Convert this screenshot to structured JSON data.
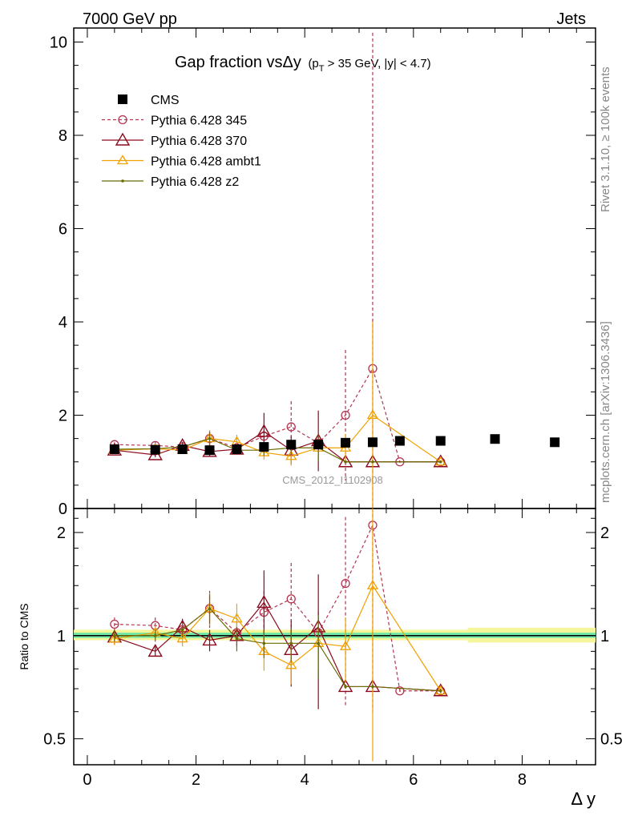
{
  "header": {
    "left": "7000 GeV pp",
    "right": "Jets"
  },
  "side": {
    "rivet": "Rivet 3.1.10, ≥ 100k events",
    "mcplots": "mcplots.cern.ch [arXiv:1306.3436]"
  },
  "chart_data": [
    {
      "type": "line",
      "panel": "main",
      "title": {
        "main": "Gap fraction vsΔy",
        "sub_open": "(p",
        "sub_T": "T",
        "sub_rest": " > 35 GeV, |y| < 4.7)"
      },
      "analysis_label": "CMS_2012_I1102908",
      "ylim": [
        0,
        10.3
      ],
      "yticks": [
        0,
        2,
        4,
        6,
        8,
        10
      ],
      "xlim": [
        -0.25,
        9.35
      ],
      "xticks": [
        0,
        2,
        4,
        6,
        8
      ],
      "legend_position": "top-left",
      "legend": [
        {
          "name": "CMS",
          "color": "#000000",
          "marker": "square",
          "dash": false
        },
        {
          "name": "Pythia 6.428 345",
          "color": "#b5344f",
          "marker": "circle",
          "dash": true
        },
        {
          "name": "Pythia 6.428 370",
          "color": "#8b0a1e",
          "marker": "triangle",
          "dash": false
        },
        {
          "name": "Pythia 6.428 ambt1",
          "color": "#f0a000",
          "marker": "triangle-small",
          "dash": false
        },
        {
          "name": "Pythia 6.428 z2",
          "color": "#6b6b00",
          "marker": "dot",
          "dash": false
        }
      ],
      "series": [
        {
          "name": "CMS",
          "x": [
            0.5,
            1.25,
            1.75,
            2.25,
            2.75,
            3.25,
            3.75,
            4.25,
            4.75,
            5.25,
            5.75,
            6.5,
            7.5,
            8.6
          ],
          "y": [
            1.27,
            1.26,
            1.27,
            1.25,
            1.27,
            1.32,
            1.37,
            1.37,
            1.41,
            1.42,
            1.45,
            1.45,
            1.49,
            1.42
          ]
        },
        {
          "name": "Pythia 6.428 345",
          "x": [
            0.5,
            1.25,
            1.75,
            2.25,
            2.75,
            3.25,
            3.75,
            4.25,
            4.75,
            5.25,
            5.75,
            6.5
          ],
          "y": [
            1.37,
            1.35,
            1.32,
            1.5,
            1.3,
            1.55,
            1.75,
            1.4,
            2.0,
            3.0,
            1.0,
            1.0
          ],
          "err": [
            0.05,
            0.08,
            0.07,
            0.15,
            0.12,
            0.25,
            0.55,
            0.2,
            1.4,
            7.2,
            0.02,
            0.02
          ]
        },
        {
          "name": "Pythia 6.428 370",
          "x": [
            0.5,
            1.25,
            1.75,
            2.25,
            2.75,
            3.25,
            3.75,
            4.25,
            4.75,
            5.25,
            6.5
          ],
          "y": [
            1.25,
            1.15,
            1.35,
            1.22,
            1.27,
            1.65,
            1.25,
            1.45,
            1.0,
            1.0,
            1.0
          ],
          "err": [
            0.06,
            0.05,
            0.08,
            0.1,
            0.1,
            0.4,
            0.3,
            0.65,
            0.02,
            0.02,
            0.02
          ]
        },
        {
          "name": "Pythia 6.428 ambt1",
          "x": [
            0.5,
            1.25,
            1.75,
            2.25,
            2.75,
            3.25,
            3.75,
            4.25,
            4.75,
            5.25,
            6.5
          ],
          "y": [
            1.25,
            1.28,
            1.25,
            1.5,
            1.43,
            1.2,
            1.12,
            1.3,
            1.3,
            2.0,
            1.0
          ],
          "err": [
            0.05,
            0.06,
            0.07,
            0.18,
            0.15,
            0.15,
            0.2,
            0.2,
            0.3,
            2.0,
            0.02
          ]
        },
        {
          "name": "Pythia 6.428 z2",
          "x": [
            0.5,
            1.25,
            1.75,
            2.25,
            2.75,
            3.25,
            3.75,
            4.25,
            4.75,
            5.25,
            6.5
          ],
          "y": [
            1.27,
            1.28,
            1.32,
            1.5,
            1.25,
            1.25,
            1.3,
            1.3,
            1.0,
            1.0,
            1.0
          ],
          "err": [
            0.05,
            0.05,
            0.06,
            0.15,
            0.1,
            0.12,
            0.15,
            0.3,
            0.02,
            0.02,
            0.02
          ]
        }
      ]
    },
    {
      "type": "line",
      "panel": "ratio",
      "ylabel": "Ratio to CMS",
      "xlabel": "Δ y",
      "ylim": [
        0.42,
        2.35
      ],
      "log": true,
      "yticks": [
        0.5,
        1,
        2
      ],
      "ytick_labels": [
        "0.5",
        "1",
        "2"
      ],
      "xlim": [
        -0.25,
        9.35
      ],
      "xticks": [
        0,
        2,
        4,
        6,
        8
      ],
      "xtick_labels": [
        "0",
        "2",
        "4",
        "6",
        "8"
      ],
      "band_color": "#f5f59a",
      "band_inner_color": "#6fe8a8",
      "series": [
        {
          "name": "Pythia 6.428 345",
          "x": [
            0.5,
            1.25,
            1.75,
            2.25,
            2.75,
            3.25,
            3.75,
            4.25,
            4.75,
            5.25,
            5.75,
            6.5
          ],
          "y": [
            1.08,
            1.07,
            1.04,
            1.2,
            1.02,
            1.17,
            1.28,
            1.02,
            1.42,
            2.1,
            0.69,
            0.69
          ],
          "err": [
            0.05,
            0.06,
            0.05,
            0.15,
            0.08,
            0.18,
            0.35,
            0.15,
            0.8,
            1.5,
            0.01,
            0.01
          ]
        },
        {
          "name": "Pythia 6.428 370",
          "x": [
            0.5,
            1.25,
            1.75,
            2.25,
            2.75,
            3.25,
            3.75,
            4.25,
            4.75,
            5.25,
            6.5
          ],
          "y": [
            0.99,
            0.9,
            1.06,
            0.97,
            1.0,
            1.25,
            0.91,
            1.06,
            0.71,
            0.71,
            0.69
          ],
          "err": [
            0.05,
            0.03,
            0.06,
            0.07,
            0.07,
            0.3,
            0.2,
            0.45,
            0.01,
            0.01,
            0.01
          ]
        },
        {
          "name": "Pythia 6.428 ambt1",
          "x": [
            0.5,
            1.25,
            1.75,
            2.25,
            2.75,
            3.25,
            3.75,
            4.25,
            4.75,
            5.25,
            6.5
          ],
          "y": [
            0.98,
            1.02,
            0.98,
            1.2,
            1.12,
            0.9,
            0.82,
            0.95,
            0.93,
            1.4,
            0.69
          ],
          "err": [
            0.04,
            0.05,
            0.05,
            0.13,
            0.12,
            0.11,
            0.1,
            0.15,
            0.2,
            1.2,
            0.01
          ]
        },
        {
          "name": "Pythia 6.428 z2",
          "x": [
            0.5,
            1.25,
            1.75,
            2.25,
            2.75,
            3.25,
            3.75,
            4.25,
            4.75,
            5.25,
            6.5
          ],
          "y": [
            1.0,
            1.0,
            1.04,
            1.2,
            0.98,
            0.95,
            0.95,
            0.95,
            0.71,
            0.71,
            0.69
          ],
          "err": [
            0.04,
            0.04,
            0.05,
            0.12,
            0.08,
            0.09,
            0.11,
            0.2,
            0.01,
            0.01,
            0.01
          ]
        }
      ]
    }
  ]
}
